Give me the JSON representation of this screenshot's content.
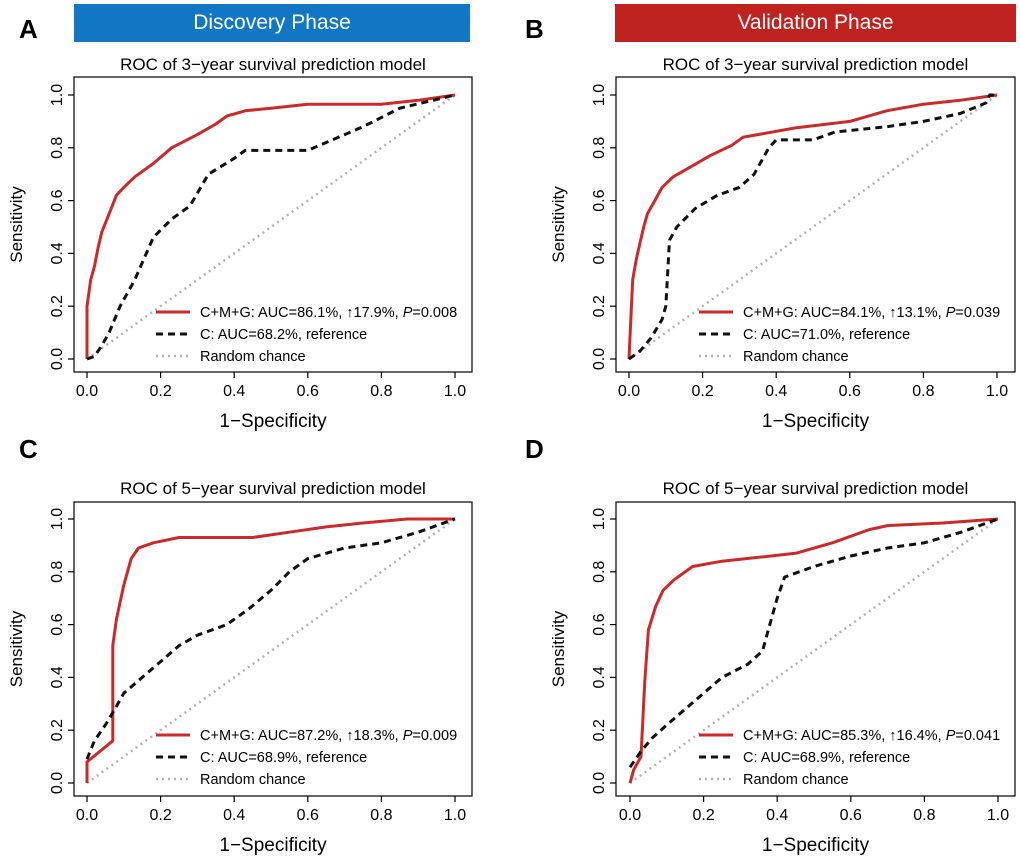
{
  "phases": [
    {
      "label": "Discovery Phase",
      "color": "#1177c4"
    },
    {
      "label": "Validation Phase",
      "color": "#c0221f"
    }
  ],
  "colors": {
    "model": "#cc2a2a",
    "reference": "#111111",
    "random": "#b3b3b3"
  },
  "chart_data": [
    {
      "panel": "A",
      "type": "line",
      "title": "ROC of 3−year survival prediction model",
      "xlabel": "1−Specificity",
      "ylabel": "Sensitivity",
      "xlim": [
        0,
        1
      ],
      "ylim": [
        0,
        1
      ],
      "xticks": [
        "0.0",
        "0.2",
        "0.4",
        "0.6",
        "0.8",
        "1.0"
      ],
      "yticks": [
        "0.0",
        "0.2",
        "0.4",
        "0.6",
        "0.8",
        "1.0"
      ],
      "grid": false,
      "legend_position": "bottom-right",
      "series": [
        {
          "name": "C+M+G: AUC=86.1%, ↑17.9%, P=0.008",
          "name_parts": [
            "C+M+G: AUC=86.1%, ↑17.9%, ",
            "P",
            "=0.008"
          ],
          "style": "solid",
          "points": [
            [
              0,
              0
            ],
            [
              0,
              0.2
            ],
            [
              0.01,
              0.3
            ],
            [
              0.02,
              0.35
            ],
            [
              0.03,
              0.42
            ],
            [
              0.04,
              0.48
            ],
            [
              0.06,
              0.55
            ],
            [
              0.08,
              0.62
            ],
            [
              0.1,
              0.65
            ],
            [
              0.13,
              0.69
            ],
            [
              0.18,
              0.74
            ],
            [
              0.23,
              0.8
            ],
            [
              0.3,
              0.85
            ],
            [
              0.35,
              0.89
            ],
            [
              0.38,
              0.92
            ],
            [
              0.43,
              0.94
            ],
            [
              0.5,
              0.95
            ],
            [
              0.6,
              0.965
            ],
            [
              0.8,
              0.965
            ],
            [
              0.9,
              0.98
            ],
            [
              1,
              1
            ]
          ]
        },
        {
          "name": "C: AUC=68.2%, reference",
          "style": "dashed",
          "points": [
            [
              0,
              0
            ],
            [
              0.02,
              0.01
            ],
            [
              0.04,
              0.05
            ],
            [
              0.06,
              0.1
            ],
            [
              0.09,
              0.2
            ],
            [
              0.13,
              0.3
            ],
            [
              0.18,
              0.46
            ],
            [
              0.23,
              0.53
            ],
            [
              0.28,
              0.58
            ],
            [
              0.33,
              0.7
            ],
            [
              0.4,
              0.76
            ],
            [
              0.43,
              0.79
            ],
            [
              0.6,
              0.79
            ],
            [
              0.65,
              0.82
            ],
            [
              0.75,
              0.88
            ],
            [
              0.85,
              0.95
            ],
            [
              1,
              1
            ]
          ]
        },
        {
          "name": "Random chance",
          "style": "dotted",
          "points": [
            [
              0,
              0
            ],
            [
              1,
              1
            ]
          ]
        }
      ]
    },
    {
      "panel": "B",
      "type": "line",
      "title": "ROC of 3−year survival prediction model",
      "xlabel": "1−Specificity",
      "ylabel": "Sensitivity",
      "xlim": [
        0,
        1
      ],
      "ylim": [
        0,
        1
      ],
      "xticks": [
        "0.0",
        "0.2",
        "0.4",
        "0.6",
        "0.8",
        "1.0"
      ],
      "yticks": [
        "0.0",
        "0.2",
        "0.4",
        "0.6",
        "0.8",
        "1.0"
      ],
      "grid": false,
      "legend_position": "bottom-right",
      "series": [
        {
          "name": "C+M+G: AUC=84.1%, ↑13.1%, P=0.039",
          "name_parts": [
            "C+M+G: AUC=84.1%, ↑13.1%, ",
            "P",
            "=0.039"
          ],
          "style": "solid",
          "points": [
            [
              0,
              0
            ],
            [
              0.005,
              0.15
            ],
            [
              0.01,
              0.3
            ],
            [
              0.02,
              0.38
            ],
            [
              0.03,
              0.44
            ],
            [
              0.04,
              0.5
            ],
            [
              0.05,
              0.55
            ],
            [
              0.07,
              0.6
            ],
            [
              0.09,
              0.65
            ],
            [
              0.12,
              0.69
            ],
            [
              0.17,
              0.73
            ],
            [
              0.22,
              0.77
            ],
            [
              0.28,
              0.81
            ],
            [
              0.31,
              0.84
            ],
            [
              0.35,
              0.85
            ],
            [
              0.45,
              0.875
            ],
            [
              0.6,
              0.9
            ],
            [
              0.7,
              0.94
            ],
            [
              0.8,
              0.965
            ],
            [
              0.9,
              0.98
            ],
            [
              1,
              1
            ]
          ]
        },
        {
          "name": "C: AUC=71.0%, reference",
          "style": "dashed",
          "points": [
            [
              0,
              0
            ],
            [
              0.03,
              0.03
            ],
            [
              0.06,
              0.08
            ],
            [
              0.09,
              0.15
            ],
            [
              0.1,
              0.2
            ],
            [
              0.11,
              0.45
            ],
            [
              0.13,
              0.5
            ],
            [
              0.18,
              0.57
            ],
            [
              0.24,
              0.62
            ],
            [
              0.3,
              0.65
            ],
            [
              0.34,
              0.7
            ],
            [
              0.38,
              0.8
            ],
            [
              0.4,
              0.83
            ],
            [
              0.5,
              0.83
            ],
            [
              0.56,
              0.86
            ],
            [
              0.7,
              0.88
            ],
            [
              0.8,
              0.9
            ],
            [
              0.9,
              0.93
            ],
            [
              0.97,
              0.97
            ],
            [
              0.98,
              1
            ],
            [
              1,
              1
            ]
          ]
        },
        {
          "name": "Random chance",
          "style": "dotted",
          "points": [
            [
              0,
              0
            ],
            [
              1,
              1
            ]
          ]
        }
      ]
    },
    {
      "panel": "C",
      "type": "line",
      "title": "ROC of 5−year survival prediction model",
      "xlabel": "1−Specificity",
      "ylabel": "Sensitivity",
      "xlim": [
        0,
        1
      ],
      "ylim": [
        0,
        1
      ],
      "xticks": [
        "0.0",
        "0.2",
        "0.4",
        "0.6",
        "0.8",
        "1.0"
      ],
      "yticks": [
        "0.0",
        "0.2",
        "0.4",
        "0.6",
        "0.8",
        "1.0"
      ],
      "grid": false,
      "legend_position": "bottom-right",
      "series": [
        {
          "name": "C+M+G: AUC=87.2%, ↑18.3%, P=0.009",
          "name_parts": [
            "C+M+G: AUC=87.2%, ↑18.3%, ",
            "P",
            "=0.009"
          ],
          "style": "solid",
          "points": [
            [
              0,
              0
            ],
            [
              0,
              0.08
            ],
            [
              0.07,
              0.16
            ],
            [
              0.07,
              0.52
            ],
            [
              0.08,
              0.62
            ],
            [
              0.1,
              0.75
            ],
            [
              0.12,
              0.85
            ],
            [
              0.14,
              0.89
            ],
            [
              0.18,
              0.91
            ],
            [
              0.25,
              0.93
            ],
            [
              0.45,
              0.93
            ],
            [
              0.55,
              0.95
            ],
            [
              0.65,
              0.97
            ],
            [
              0.75,
              0.985
            ],
            [
              0.87,
              1
            ],
            [
              1,
              1
            ]
          ]
        },
        {
          "name": "C: AUC=68.9%, reference",
          "style": "dashed",
          "points": [
            [
              0,
              0.09
            ],
            [
              0.02,
              0.16
            ],
            [
              0.05,
              0.22
            ],
            [
              0.08,
              0.29
            ],
            [
              0.1,
              0.34
            ],
            [
              0.15,
              0.4
            ],
            [
              0.2,
              0.46
            ],
            [
              0.25,
              0.52
            ],
            [
              0.3,
              0.56
            ],
            [
              0.38,
              0.6
            ],
            [
              0.44,
              0.66
            ],
            [
              0.5,
              0.73
            ],
            [
              0.55,
              0.8
            ],
            [
              0.6,
              0.85
            ],
            [
              0.7,
              0.89
            ],
            [
              0.8,
              0.91
            ],
            [
              0.9,
              0.95
            ],
            [
              1,
              1
            ]
          ]
        },
        {
          "name": "Random chance",
          "style": "dotted",
          "points": [
            [
              0,
              0
            ],
            [
              1,
              1
            ]
          ]
        }
      ]
    },
    {
      "panel": "D",
      "type": "line",
      "title": "ROC of 5−year survival prediction model",
      "xlabel": "1−Specificity",
      "ylabel": "Sensitivity",
      "xlim": [
        0,
        1
      ],
      "ylim": [
        0,
        1
      ],
      "xticks": [
        "0.0",
        "0.2",
        "0.4",
        "0.6",
        "0.8",
        "1.0"
      ],
      "yticks": [
        "0.0",
        "0.2",
        "0.4",
        "0.6",
        "0.8",
        "1.0"
      ],
      "grid": false,
      "legend_position": "bottom-right",
      "series": [
        {
          "name": "C+M+G: AUC=85.3%, ↑16.4%, P=0.041",
          "name_parts": [
            "C+M+G: AUC=85.3%, ↑16.4%, ",
            "P",
            "=0.041"
          ],
          "style": "solid",
          "points": [
            [
              0,
              0
            ],
            [
              0.01,
              0.05
            ],
            [
              0.03,
              0.1
            ],
            [
              0.04,
              0.38
            ],
            [
              0.05,
              0.58
            ],
            [
              0.07,
              0.67
            ],
            [
              0.09,
              0.73
            ],
            [
              0.12,
              0.77
            ],
            [
              0.17,
              0.82
            ],
            [
              0.25,
              0.84
            ],
            [
              0.35,
              0.855
            ],
            [
              0.45,
              0.87
            ],
            [
              0.55,
              0.91
            ],
            [
              0.65,
              0.96
            ],
            [
              0.7,
              0.975
            ],
            [
              0.85,
              0.985
            ],
            [
              1,
              1
            ]
          ]
        },
        {
          "name": "C: AUC=68.9%, reference",
          "style": "dashed",
          "points": [
            [
              0,
              0.06
            ],
            [
              0.03,
              0.12
            ],
            [
              0.06,
              0.17
            ],
            [
              0.1,
              0.22
            ],
            [
              0.15,
              0.28
            ],
            [
              0.2,
              0.34
            ],
            [
              0.25,
              0.4
            ],
            [
              0.32,
              0.45
            ],
            [
              0.36,
              0.5
            ],
            [
              0.38,
              0.6
            ],
            [
              0.4,
              0.7
            ],
            [
              0.42,
              0.78
            ],
            [
              0.5,
              0.82
            ],
            [
              0.6,
              0.86
            ],
            [
              0.7,
              0.89
            ],
            [
              0.8,
              0.91
            ],
            [
              0.9,
              0.95
            ],
            [
              1,
              1
            ]
          ]
        },
        {
          "name": "Random chance",
          "style": "dotted",
          "points": [
            [
              0,
              0
            ],
            [
              1,
              1
            ]
          ]
        }
      ]
    }
  ]
}
